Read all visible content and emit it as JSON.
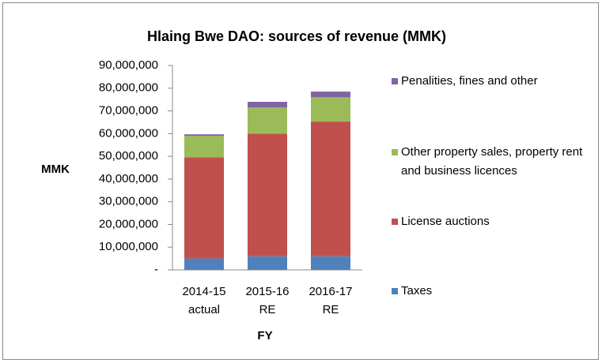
{
  "chart_data": {
    "type": "stacked_bar",
    "title": "Hlaing Bwe DAO: sources of revenue (MMK)",
    "y_label": "MMK",
    "x_label": "FY",
    "categories": [
      "2014-15 actual",
      "2015-16 RE",
      "2016-17 RE"
    ],
    "series": [
      {
        "name": "Taxes",
        "color": "#4f81bd",
        "values": [
          5000000,
          6000000,
          6000000
        ]
      },
      {
        "name": "License auctions",
        "color": "#c0504d",
        "values": [
          44500000,
          54000000,
          59300000
        ]
      },
      {
        "name": "Other property sales, property rent and business licences",
        "color": "#9bbb59",
        "values": [
          9500000,
          11500000,
          10700000
        ]
      },
      {
        "name": "Penalities, fines and other",
        "color": "#8064a2",
        "values": [
          700000,
          2500000,
          2500000
        ]
      }
    ],
    "ylim": [
      0,
      90000000
    ],
    "yticks": [
      {
        "value": 0,
        "label": "-"
      },
      {
        "value": 10000000,
        "label": "10,000,000"
      },
      {
        "value": 20000000,
        "label": "20,000,000"
      },
      {
        "value": 30000000,
        "label": "30,000,000"
      },
      {
        "value": 40000000,
        "label": "40,000,000"
      },
      {
        "value": 50000000,
        "label": "50,000,000"
      },
      {
        "value": 60000000,
        "label": "60,000,000"
      },
      {
        "value": 70000000,
        "label": "70,000,000"
      },
      {
        "value": 80000000,
        "label": "80,000,000"
      },
      {
        "value": 90000000,
        "label": "90,000,000"
      }
    ],
    "legend": "right"
  }
}
